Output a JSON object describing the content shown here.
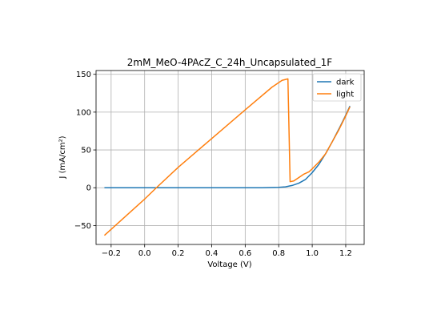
{
  "chart_data": {
    "type": "line",
    "title": "2mM_MeO-4PAcZ_C_24h_Uncapsulated_1F",
    "xlabel": "Voltage (V)",
    "ylabel": "J (mA/cm²)",
    "xlim": [
      -0.29,
      1.31
    ],
    "ylim": [
      -75,
      155
    ],
    "xticks": [
      -0.2,
      0.0,
      0.2,
      0.4,
      0.6,
      0.8,
      1.0,
      1.2
    ],
    "xtick_labels": [
      "−0.2",
      "0.0",
      "0.2",
      "0.4",
      "0.6",
      "0.8",
      "1.0",
      "1.2"
    ],
    "yticks": [
      -50,
      0,
      50,
      100,
      150
    ],
    "ytick_labels": [
      "−50",
      "0",
      "50",
      "100",
      "150"
    ],
    "grid": true,
    "legend": "top-right",
    "series": [
      {
        "name": "dark",
        "color": "#1f77b4",
        "points": [
          [
            -0.24,
            0
          ],
          [
            0.0,
            0
          ],
          [
            0.4,
            0
          ],
          [
            0.7,
            0
          ],
          [
            0.8,
            0.5
          ],
          [
            0.84,
            1.2
          ],
          [
            0.88,
            3
          ],
          [
            0.92,
            6
          ],
          [
            0.96,
            11
          ],
          [
            1.0,
            20
          ],
          [
            1.04,
            31
          ],
          [
            1.08,
            45
          ],
          [
            1.12,
            61
          ],
          [
            1.16,
            78
          ],
          [
            1.2,
            96
          ],
          [
            1.225,
            108
          ]
        ]
      },
      {
        "name": "light",
        "color": "#ff7f0e",
        "points": [
          [
            -0.24,
            -63
          ],
          [
            0.0,
            -15
          ],
          [
            0.07,
            0
          ],
          [
            0.2,
            27
          ],
          [
            0.4,
            65
          ],
          [
            0.6,
            103
          ],
          [
            0.76,
            133
          ],
          [
            0.82,
            142
          ],
          [
            0.855,
            144
          ],
          [
            0.868,
            8
          ],
          [
            0.89,
            9
          ],
          [
            0.93,
            15
          ],
          [
            0.95,
            18
          ],
          [
            0.98,
            21
          ],
          [
            1.0,
            25
          ],
          [
            1.04,
            34
          ],
          [
            1.08,
            45
          ],
          [
            1.12,
            61
          ],
          [
            1.16,
            77
          ],
          [
            1.2,
            95
          ],
          [
            1.225,
            107
          ]
        ]
      }
    ]
  }
}
